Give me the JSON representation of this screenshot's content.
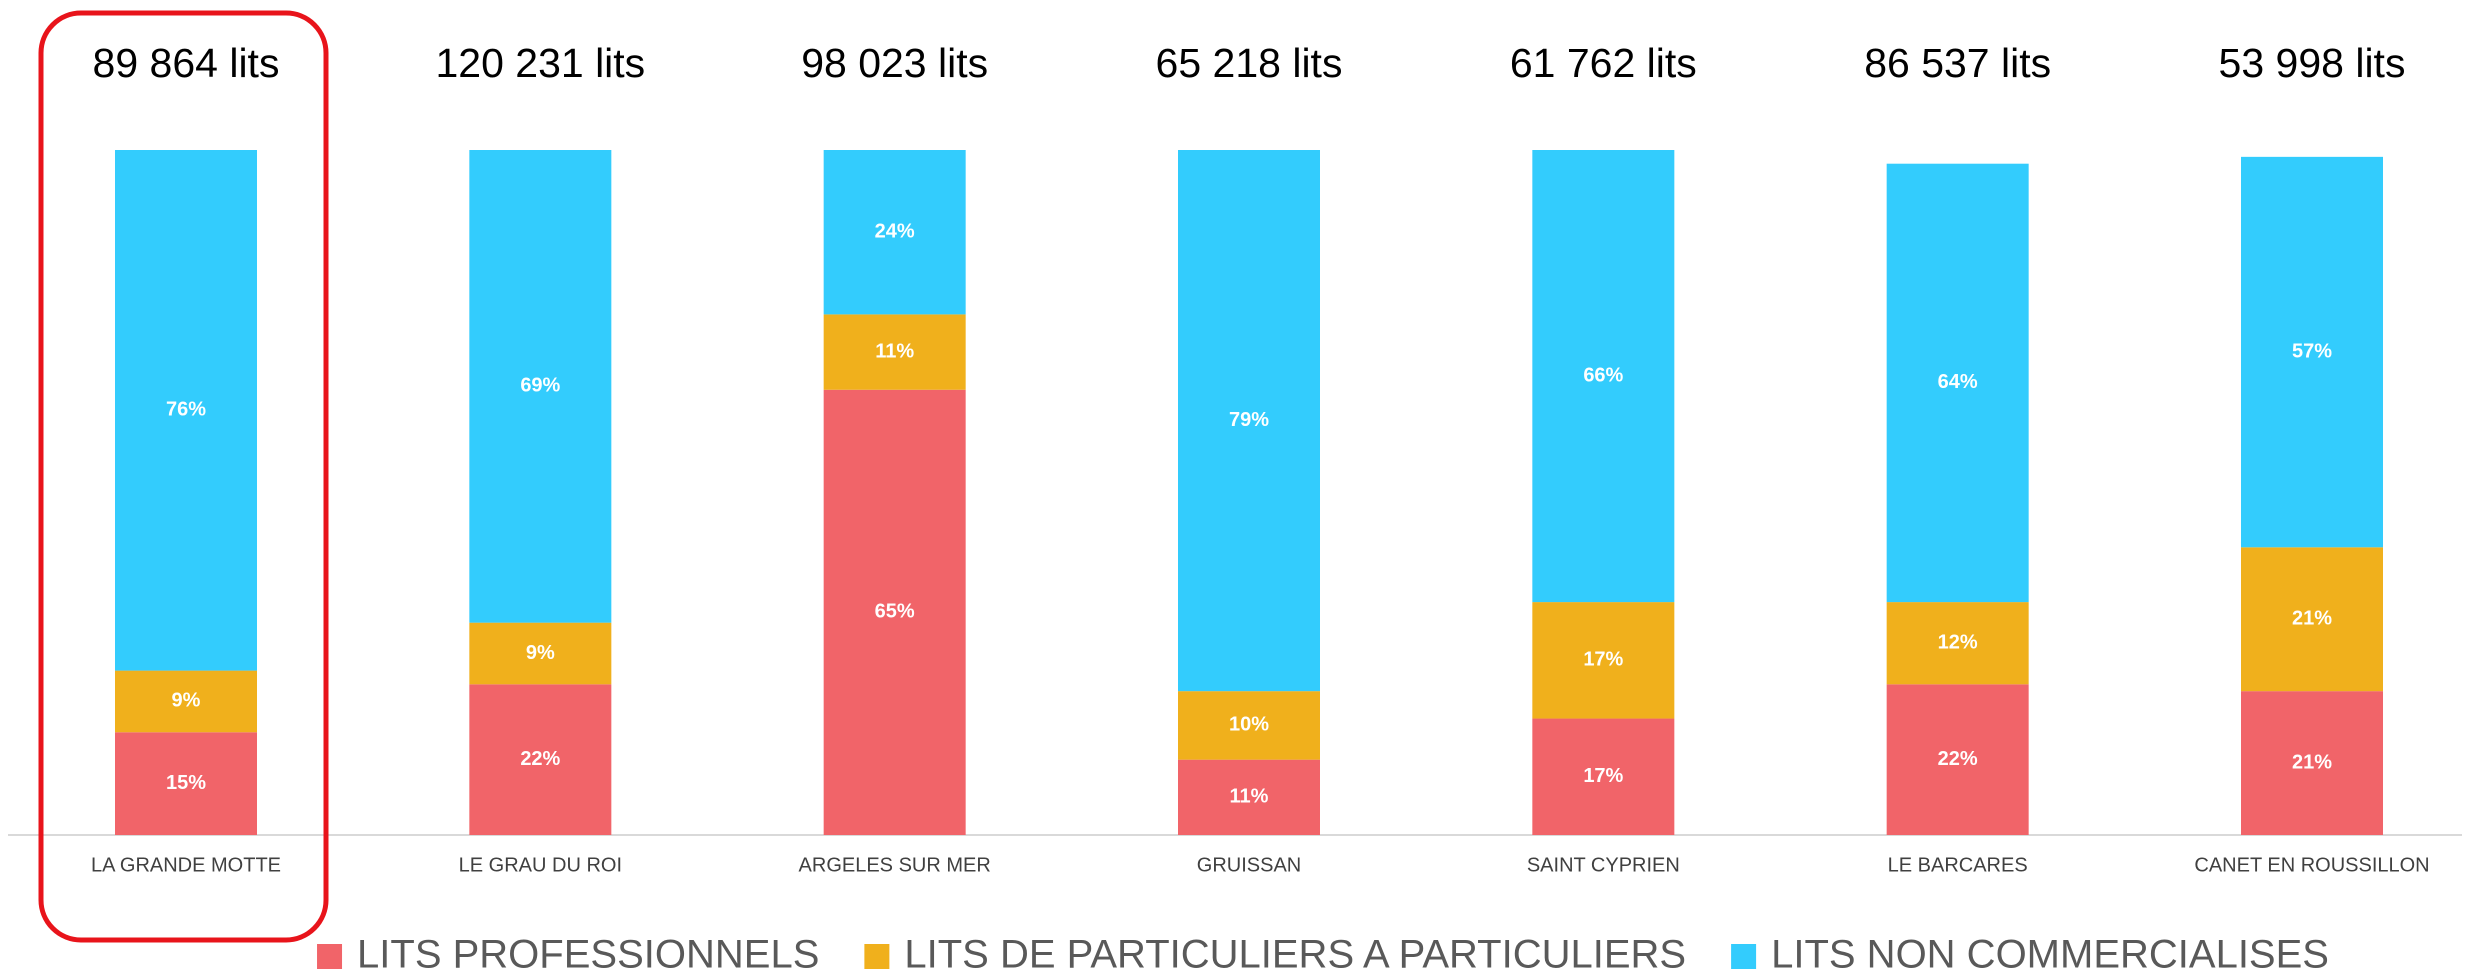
{
  "chart_data": {
    "type": "stacked-bar",
    "categories": [
      "LA GRANDE MOTTE",
      "LE GRAU DU ROI",
      "ARGELES SUR MER",
      "GRUISSAN",
      "SAINT CYPRIEN",
      "LE BARCARES",
      "CANET EN ROUSSILLON"
    ],
    "annotations": [
      "89 864 lits",
      "120 231 lits",
      "98 023 lits",
      "65 218 lits",
      "61 762 lits",
      "86 537 lits",
      "53 998 lits"
    ],
    "series": [
      {
        "name": "LITS PROFESSIONNELS",
        "color": "#f16469",
        "values": [
          15,
          22,
          65,
          11,
          17,
          22,
          21
        ],
        "value_labels": [
          "15%",
          "22%",
          "65%",
          "11%",
          "17%",
          "22%",
          "21%"
        ]
      },
      {
        "name": "LITS DE PARTICULIERS A PARTICULIERS",
        "color": "#f0b01c",
        "values": [
          9,
          9,
          11,
          10,
          17,
          12,
          21
        ],
        "value_labels": [
          "9%",
          "9%",
          "11%",
          "10%",
          "17%",
          "12%",
          "21%"
        ]
      },
      {
        "name": "LITS NON COMMERCIALISES",
        "color": "#33ccfd",
        "values": [
          76,
          69,
          24,
          79,
          66,
          64,
          57
        ],
        "value_labels": [
          "76%",
          "69%",
          "24%",
          "79%",
          "66%",
          "64%",
          "57%"
        ]
      }
    ],
    "ylim": [
      0,
      100
    ],
    "grid": false,
    "legend": "bottom"
  }
}
